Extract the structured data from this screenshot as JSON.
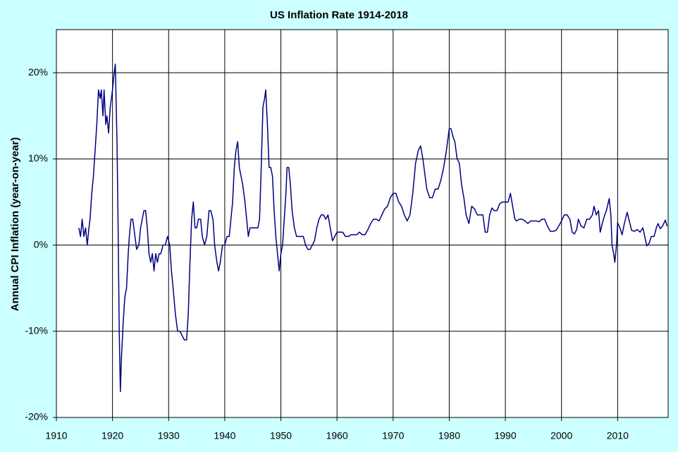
{
  "chart_data": {
    "type": "line",
    "title": "US Inflation Rate 1914-2018",
    "y_label": "Annual CPI Inflation (year-on-year)",
    "xlim": [
      1910,
      2019
    ],
    "xticks": [
      1910,
      1920,
      1930,
      1940,
      1950,
      1960,
      1970,
      1980,
      1990,
      2000,
      2010
    ],
    "ylim": [
      -20,
      25
    ],
    "yticks": [
      {
        "value": -20,
        "label": "-20%"
      },
      {
        "value": -10,
        "label": "-10%"
      },
      {
        "value": 0,
        "label": "0%"
      },
      {
        "value": 10,
        "label": "10%"
      },
      {
        "value": 20,
        "label": "20%"
      }
    ],
    "grid": true,
    "series": [
      {
        "name": "US Inflation Rate",
        "color": "#000080",
        "x": [
          1914.0,
          1914.3,
          1914.6,
          1914.9,
          1915.2,
          1915.5,
          1915.8,
          1916.0,
          1916.3,
          1916.6,
          1916.9,
          1917.2,
          1917.5,
          1917.8,
          1918.0,
          1918.3,
          1918.5,
          1918.8,
          1919.0,
          1919.3,
          1919.6,
          1920.0,
          1920.3,
          1920.5,
          1920.8,
          1921.0,
          1921.2,
          1921.4,
          1921.6,
          1921.9,
          1922.2,
          1922.5,
          1922.8,
          1923.0,
          1923.3,
          1923.6,
          1924.0,
          1924.3,
          1924.7,
          1925.0,
          1925.3,
          1925.6,
          1925.9,
          1926.2,
          1926.5,
          1926.8,
          1927.1,
          1927.4,
          1927.7,
          1928.0,
          1928.3,
          1928.6,
          1929.0,
          1929.4,
          1929.8,
          1930.2,
          1930.5,
          1930.8,
          1931.2,
          1931.6,
          1932.0,
          1932.4,
          1932.8,
          1933.2,
          1933.5,
          1933.8,
          1934.1,
          1934.4,
          1934.7,
          1935.0,
          1935.3,
          1935.7,
          1936.0,
          1936.4,
          1936.8,
          1937.2,
          1937.5,
          1937.9,
          1938.2,
          1938.6,
          1938.9,
          1939.2,
          1939.6,
          1940.0,
          1940.4,
          1940.8,
          1941.1,
          1941.4,
          1941.7,
          1942.0,
          1942.3,
          1942.6,
          1942.9,
          1943.2,
          1943.6,
          1943.9,
          1944.2,
          1944.5,
          1944.9,
          1945.2,
          1945.6,
          1945.9,
          1946.2,
          1946.5,
          1946.8,
          1947.1,
          1947.3,
          1947.6,
          1947.9,
          1948.2,
          1948.5,
          1948.8,
          1949.1,
          1949.4,
          1949.7,
          1950.0,
          1950.3,
          1950.6,
          1950.9,
          1951.1,
          1951.4,
          1951.7,
          1952.0,
          1952.4,
          1952.8,
          1953.2,
          1953.6,
          1954.0,
          1954.4,
          1954.8,
          1955.2,
          1955.6,
          1956.0,
          1956.4,
          1956.8,
          1957.2,
          1957.6,
          1958.0,
          1958.4,
          1958.8,
          1959.2,
          1959.6,
          1960.0,
          1960.5,
          1961.0,
          1961.5,
          1962.0,
          1962.5,
          1963.0,
          1963.5,
          1964.0,
          1964.5,
          1965.0,
          1965.5,
          1966.0,
          1966.5,
          1967.0,
          1967.5,
          1968.0,
          1968.5,
          1969.0,
          1969.5,
          1970.0,
          1970.5,
          1971.0,
          1971.5,
          1972.0,
          1972.5,
          1973.0,
          1973.5,
          1974.0,
          1974.5,
          1974.9,
          1975.3,
          1975.7,
          1976.0,
          1976.5,
          1977.0,
          1977.5,
          1978.0,
          1978.5,
          1979.0,
          1979.5,
          1980.0,
          1980.3,
          1980.7,
          1981.0,
          1981.4,
          1981.8,
          1982.2,
          1982.6,
          1983.0,
          1983.5,
          1984.0,
          1984.5,
          1985.0,
          1985.5,
          1986.0,
          1986.4,
          1986.8,
          1987.2,
          1987.6,
          1988.0,
          1988.5,
          1989.0,
          1989.5,
          1990.0,
          1990.5,
          1990.9,
          1991.3,
          1991.7,
          1992.0,
          1992.5,
          1993.0,
          1993.5,
          1994.0,
          1994.5,
          1995.0,
          1995.5,
          1996.0,
          1996.5,
          1997.0,
          1997.5,
          1998.0,
          1998.5,
          1999.0,
          1999.5,
          2000.0,
          2000.5,
          2001.0,
          2001.5,
          2001.9,
          2002.3,
          2002.7,
          2003.0,
          2003.5,
          2004.0,
          2004.5,
          2005.0,
          2005.5,
          2005.8,
          2006.2,
          2006.6,
          2006.9,
          2007.3,
          2007.7,
          2008.0,
          2008.5,
          2008.8,
          2009.0,
          2009.3,
          2009.5,
          2009.8,
          2010.0,
          2010.4,
          2010.8,
          2011.2,
          2011.7,
          2012.0,
          2012.5,
          2013.0,
          2013.5,
          2014.0,
          2014.5,
          2014.9,
          2015.2,
          2015.6,
          2016.0,
          2016.5,
          2016.9,
          2017.2,
          2017.6,
          2018.0,
          2018.5,
          2018.8
        ],
        "values": [
          2,
          1,
          3,
          1,
          2,
          0,
          2,
          3,
          6,
          8,
          11,
          14,
          18,
          17,
          18,
          15,
          18,
          14,
          15,
          13,
          16,
          18,
          20,
          21,
          12,
          2,
          -10,
          -17,
          -13,
          -9,
          -6,
          -5,
          -1,
          1,
          3,
          3,
          1,
          -0.5,
          0,
          2,
          3,
          4,
          4,
          2,
          -1,
          -2,
          -1,
          -3,
          -1,
          -2,
          -1,
          -1,
          0,
          0,
          1,
          0,
          -3,
          -5,
          -8,
          -10,
          -10,
          -10.5,
          -11,
          -11,
          -8,
          -2,
          3,
          5,
          2,
          2,
          3,
          3,
          1,
          0,
          1,
          4,
          4,
          3,
          0,
          -2,
          -3,
          -2,
          0,
          0,
          1,
          1,
          3,
          5,
          9,
          11,
          12,
          9,
          8,
          7,
          5,
          3,
          1,
          2,
          2,
          2,
          2,
          2,
          3,
          9,
          16,
          17,
          18,
          14,
          9,
          9,
          8,
          4,
          1,
          -1,
          -3,
          -1,
          0,
          3,
          6,
          9,
          9,
          7,
          4,
          2,
          1,
          1,
          1,
          1,
          0,
          -0.5,
          -0.5,
          0,
          0.5,
          2,
          3,
          3.5,
          3.5,
          3,
          3.5,
          2,
          0.5,
          1,
          1.5,
          1.5,
          1.5,
          1,
          1,
          1.2,
          1.2,
          1.2,
          1.5,
          1.2,
          1.2,
          1.8,
          2.5,
          3,
          3,
          2.8,
          3.5,
          4.2,
          4.5,
          5.5,
          6,
          6,
          5,
          4.5,
          3.5,
          2.8,
          3.5,
          6,
          9.5,
          11,
          11.5,
          10,
          8,
          6.5,
          5.5,
          5.5,
          6.5,
          6.5,
          7.5,
          9,
          11,
          13.5,
          13.5,
          12.5,
          12,
          10,
          9.5,
          7,
          5.5,
          3.5,
          2.5,
          4.5,
          4.2,
          3.5,
          3.5,
          3.5,
          1.5,
          1.5,
          3.5,
          4.3,
          4,
          4,
          4.8,
          5,
          5,
          5,
          6,
          4.5,
          3,
          2.8,
          3,
          3,
          2.8,
          2.5,
          2.8,
          2.8,
          2.8,
          2.7,
          3,
          3,
          2.2,
          1.6,
          1.6,
          1.7,
          2.2,
          2.8,
          3.5,
          3.5,
          3,
          1.5,
          1.3,
          1.8,
          3,
          2.2,
          2,
          3,
          3,
          3.5,
          4.5,
          3.5,
          4,
          1.5,
          2.6,
          3.5,
          4,
          5.4,
          3.5,
          0,
          -1,
          -2,
          0,
          2.6,
          2,
          1.2,
          2.5,
          3.8,
          3,
          1.7,
          1.6,
          1.8,
          1.5,
          2,
          0.8,
          -0.1,
          0.2,
          1,
          1,
          2,
          2.5,
          1.9,
          2.2,
          2.9,
          2.2
        ]
      }
    ]
  }
}
